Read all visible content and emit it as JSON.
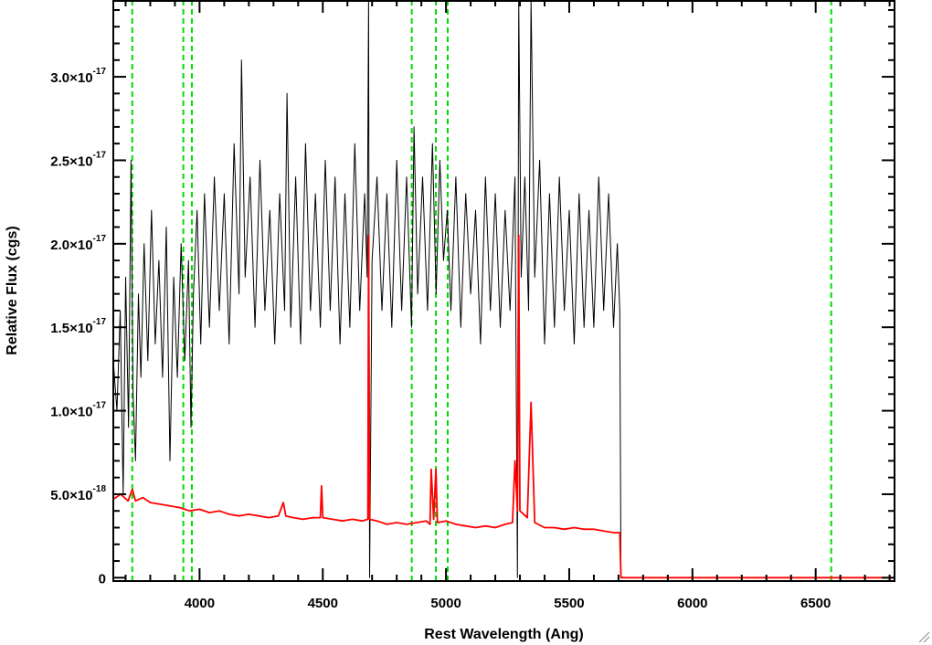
{
  "chart_data": {
    "type": "line",
    "xlabel": "Rest Wavelength (Ang)",
    "ylabel": "Relative Flux (cgs)",
    "xlim": [
      3650,
      6820
    ],
    "ylim": [
      -2e-19,
      3.46e-17
    ],
    "x_ticks": [
      4000,
      4500,
      5000,
      5500,
      6000,
      6500
    ],
    "y_ticks": [
      {
        "value": 0,
        "mantissa": "0",
        "exp": ""
      },
      {
        "value": 5e-18,
        "mantissa": "5.0×10",
        "exp": "-18"
      },
      {
        "value": 1e-17,
        "mantissa": "1.0×10",
        "exp": "-17"
      },
      {
        "value": 1.5e-17,
        "mantissa": "1.5×10",
        "exp": "-17"
      },
      {
        "value": 2e-17,
        "mantissa": "2.0×10",
        "exp": "-17"
      },
      {
        "value": 2.5e-17,
        "mantissa": "2.5×10",
        "exp": "-17"
      },
      {
        "value": 3e-17,
        "mantissa": "3.0×10",
        "exp": "-17"
      }
    ],
    "reference_lines": {
      "style": "dashed",
      "color": "#00dd00",
      "x": [
        3727,
        3934,
        3969,
        4861,
        4959,
        5007,
        6563
      ]
    },
    "series": [
      {
        "color": "#000000",
        "points": [
          [
            3650,
            1.3e-17
          ],
          [
            3665,
            1e-17
          ],
          [
            3678,
            1.6e-17
          ],
          [
            3690,
            5e-18
          ],
          [
            3700,
            1.8e-17
          ],
          [
            3712,
            9e-18
          ],
          [
            3722,
            2.5e-17
          ],
          [
            3730,
            1.1e-17
          ],
          [
            3740,
            7e-18
          ],
          [
            3752,
            1.7e-17
          ],
          [
            3762,
            1.2e-17
          ],
          [
            3775,
            2e-17
          ],
          [
            3790,
            1.3e-17
          ],
          [
            3805,
            2.2e-17
          ],
          [
            3820,
            1.4e-17
          ],
          [
            3835,
            1.9e-17
          ],
          [
            3850,
            1.2e-17
          ],
          [
            3865,
            2.1e-17
          ],
          [
            3880,
            7e-18
          ],
          [
            3895,
            1.8e-17
          ],
          [
            3910,
            1.2e-17
          ],
          [
            3925,
            2e-17
          ],
          [
            3940,
            1.3e-17
          ],
          [
            3955,
            1.9e-17
          ],
          [
            3965,
            9e-18
          ],
          [
            3975,
            1.7e-17
          ],
          [
            3990,
            2.2e-17
          ],
          [
            4005,
            1.4e-17
          ],
          [
            4020,
            2.3e-17
          ],
          [
            4040,
            1.5e-17
          ],
          [
            4060,
            2.4e-17
          ],
          [
            4080,
            1.6e-17
          ],
          [
            4100,
            2.3e-17
          ],
          [
            4120,
            1.4e-17
          ],
          [
            4140,
            2.6e-17
          ],
          [
            4160,
            1.7e-17
          ],
          [
            4170,
            3.1e-17
          ],
          [
            4185,
            1.8e-17
          ],
          [
            4205,
            2.4e-17
          ],
          [
            4225,
            1.5e-17
          ],
          [
            4245,
            2.5e-17
          ],
          [
            4265,
            1.6e-17
          ],
          [
            4285,
            2.2e-17
          ],
          [
            4305,
            1.4e-17
          ],
          [
            4325,
            2.3e-17
          ],
          [
            4345,
            1.6e-17
          ],
          [
            4355,
            2.9e-17
          ],
          [
            4370,
            1.5e-17
          ],
          [
            4390,
            2.4e-17
          ],
          [
            4410,
            1.4e-17
          ],
          [
            4430,
            2.6e-17
          ],
          [
            4450,
            1.6e-17
          ],
          [
            4470,
            2.3e-17
          ],
          [
            4490,
            1.5e-17
          ],
          [
            4510,
            2.5e-17
          ],
          [
            4530,
            1.6e-17
          ],
          [
            4550,
            2.4e-17
          ],
          [
            4570,
            1.4e-17
          ],
          [
            4590,
            2.3e-17
          ],
          [
            4610,
            1.5e-17
          ],
          [
            4630,
            2.6e-17
          ],
          [
            4650,
            1.6e-17
          ],
          [
            4670,
            2.3e-17
          ],
          [
            4680,
            1.8e-17
          ],
          [
            4686,
            4e-17
          ],
          [
            4690,
            0.0
          ],
          [
            4700,
            1.9e-17
          ],
          [
            4720,
            2.4e-17
          ],
          [
            4740,
            1.6e-17
          ],
          [
            4760,
            2.3e-17
          ],
          [
            4780,
            1.5e-17
          ],
          [
            4800,
            2.5e-17
          ],
          [
            4820,
            1.6e-17
          ],
          [
            4840,
            2.4e-17
          ],
          [
            4860,
            1.5e-17
          ],
          [
            4870,
            2.7e-17
          ],
          [
            4885,
            1.7e-17
          ],
          [
            4905,
            2.4e-17
          ],
          [
            4925,
            1.6e-17
          ],
          [
            4945,
            2.6e-17
          ],
          [
            4960,
            1.7e-17
          ],
          [
            4975,
            2.5e-17
          ],
          [
            4990,
            1.9e-17
          ],
          [
            5005,
            2.2e-17
          ],
          [
            5020,
            1.6e-17
          ],
          [
            5040,
            2.4e-17
          ],
          [
            5060,
            1.5e-17
          ],
          [
            5080,
            2.3e-17
          ],
          [
            5100,
            1.7e-17
          ],
          [
            5120,
            2.2e-17
          ],
          [
            5140,
            1.4e-17
          ],
          [
            5160,
            2.4e-17
          ],
          [
            5180,
            1.6e-17
          ],
          [
            5200,
            2.3e-17
          ],
          [
            5220,
            1.5e-17
          ],
          [
            5240,
            2.2e-17
          ],
          [
            5260,
            1.6e-17
          ],
          [
            5280,
            2.4e-17
          ],
          [
            5290,
            0.0
          ],
          [
            5295,
            4e-17
          ],
          [
            5305,
            1.8e-17
          ],
          [
            5320,
            2.4e-17
          ],
          [
            5335,
            1.6e-17
          ],
          [
            5345,
            3.5e-17
          ],
          [
            5360,
            1.8e-17
          ],
          [
            5380,
            2.5e-17
          ],
          [
            5400,
            1.4e-17
          ],
          [
            5420,
            2.3e-17
          ],
          [
            5440,
            1.5e-17
          ],
          [
            5460,
            2.4e-17
          ],
          [
            5480,
            1.6e-17
          ],
          [
            5500,
            2.2e-17
          ],
          [
            5520,
            1.4e-17
          ],
          [
            5540,
            2.3e-17
          ],
          [
            5560,
            1.5e-17
          ],
          [
            5580,
            2.2e-17
          ],
          [
            5600,
            1.5e-17
          ],
          [
            5620,
            2.4e-17
          ],
          [
            5640,
            1.6e-17
          ],
          [
            5660,
            2.3e-17
          ],
          [
            5680,
            1.5e-17
          ],
          [
            5695,
            2e-17
          ],
          [
            5705,
            1.6e-17
          ],
          [
            5710,
            0.0
          ],
          [
            6820,
            0.0
          ]
        ]
      },
      {
        "color": "#ff0000",
        "points": [
          [
            3650,
            4.7e-18
          ],
          [
            3680,
            5e-18
          ],
          [
            3710,
            4.6e-18
          ],
          [
            3727,
            5.3e-18
          ],
          [
            3740,
            4.6e-18
          ],
          [
            3770,
            4.8e-18
          ],
          [
            3800,
            4.5e-18
          ],
          [
            3840,
            4.4e-18
          ],
          [
            3880,
            4.3e-18
          ],
          [
            3920,
            4.2e-18
          ],
          [
            3960,
            4e-18
          ],
          [
            4000,
            4.1e-18
          ],
          [
            4040,
            3.9e-18
          ],
          [
            4080,
            4e-18
          ],
          [
            4120,
            3.8e-18
          ],
          [
            4160,
            3.7e-18
          ],
          [
            4200,
            3.8e-18
          ],
          [
            4240,
            3.7e-18
          ],
          [
            4280,
            3.6e-18
          ],
          [
            4320,
            3.7e-18
          ],
          [
            4340,
            4.5e-18
          ],
          [
            4350,
            3.7e-18
          ],
          [
            4380,
            3.6e-18
          ],
          [
            4420,
            3.5e-18
          ],
          [
            4460,
            3.6e-18
          ],
          [
            4490,
            3.6e-18
          ],
          [
            4495,
            5.5e-18
          ],
          [
            4500,
            3.6e-18
          ],
          [
            4540,
            3.5e-18
          ],
          [
            4580,
            3.4e-18
          ],
          [
            4620,
            3.5e-18
          ],
          [
            4660,
            3.4e-18
          ],
          [
            4683,
            3.5e-18
          ],
          [
            4686,
            2.05e-17
          ],
          [
            4690,
            3.5e-18
          ],
          [
            4720,
            3.4e-18
          ],
          [
            4760,
            3.2e-18
          ],
          [
            4800,
            3.3e-18
          ],
          [
            4840,
            3.2e-18
          ],
          [
            4880,
            3.3e-18
          ],
          [
            4920,
            3.4e-18
          ],
          [
            4935,
            3.2e-18
          ],
          [
            4940,
            6.5e-18
          ],
          [
            4950,
            3.5e-18
          ],
          [
            4959,
            6.5e-18
          ],
          [
            4965,
            3.3e-18
          ],
          [
            5000,
            3.4e-18
          ],
          [
            5040,
            3.2e-18
          ],
          [
            5080,
            3.1e-18
          ],
          [
            5120,
            3e-18
          ],
          [
            5160,
            3.1e-18
          ],
          [
            5200,
            3e-18
          ],
          [
            5240,
            3.2e-18
          ],
          [
            5270,
            3.3e-18
          ],
          [
            5280,
            7e-18
          ],
          [
            5290,
            4e-18
          ],
          [
            5295,
            2.05e-17
          ],
          [
            5300,
            4e-18
          ],
          [
            5330,
            3.6e-18
          ],
          [
            5345,
            1.05e-17
          ],
          [
            5360,
            3.3e-18
          ],
          [
            5400,
            3e-18
          ],
          [
            5440,
            3e-18
          ],
          [
            5480,
            2.9e-18
          ],
          [
            5520,
            3e-18
          ],
          [
            5560,
            2.9e-18
          ],
          [
            5600,
            2.9e-18
          ],
          [
            5640,
            2.8e-18
          ],
          [
            5680,
            2.7e-18
          ],
          [
            5705,
            2.7e-18
          ],
          [
            5710,
            0.0
          ],
          [
            6820,
            0.0
          ]
        ]
      }
    ],
    "grid": false
  }
}
